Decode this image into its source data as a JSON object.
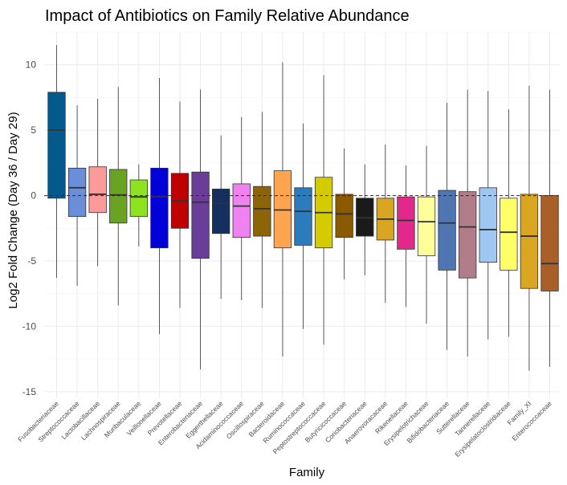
{
  "chart_data": {
    "type": "boxplot",
    "title": "Impact of Antibiotics on Family Relative Abundance",
    "xlabel": "Family",
    "ylabel": "Log2 Fold Change (Day 36 / Day 29)",
    "ylim": [
      -15.5,
      12.5
    ],
    "yticks": [
      -15,
      -10,
      -5,
      0,
      5,
      10
    ],
    "reference_line": 0,
    "grid": true,
    "legend": "none",
    "boxes": [
      {
        "family": "Fusobacteriaceae",
        "color": "#045a8d",
        "whisker_low": -6.3,
        "q1": -0.2,
        "median": 5.0,
        "q3": 7.9,
        "whisker_high": 11.5
      },
      {
        "family": "Streptococcaceae",
        "color": "#6a8fd8",
        "whisker_low": -6.9,
        "q1": -1.6,
        "median": 0.6,
        "q3": 2.1,
        "whisker_high": 6.9
      },
      {
        "family": "Lactobacillaceae",
        "color": "#fb9a99",
        "whisker_low": -5.4,
        "q1": -1.3,
        "median": 0.1,
        "q3": 2.2,
        "whisker_high": 7.4
      },
      {
        "family": "Lachnospiraceae",
        "color": "#6aa323",
        "whisker_low": -8.4,
        "q1": -2.1,
        "median": 0.05,
        "q3": 2.0,
        "whisker_high": 8.3
      },
      {
        "family": "Muribaculaceae",
        "color": "#8ee320",
        "whisker_low": -3.9,
        "q1": -1.6,
        "median": -0.1,
        "q3": 1.2,
        "whisker_high": 2.4
      },
      {
        "family": "Veillonellaceae",
        "color": "#0000d9",
        "whisker_low": -10.6,
        "q1": -4.0,
        "median": -0.1,
        "q3": 2.1,
        "whisker_high": 9.0
      },
      {
        "family": "Prevotellaceae",
        "color": "#c00000",
        "whisker_low": -8.6,
        "q1": -2.5,
        "median": -0.4,
        "q3": 1.7,
        "whisker_high": 7.2
      },
      {
        "family": "Enterobacteriaceae",
        "color": "#6a3d9a",
        "whisker_low": -13.3,
        "q1": -4.8,
        "median": -0.5,
        "q3": 1.8,
        "whisker_high": 8.1
      },
      {
        "family": "Eggerthellaceae",
        "color": "#13305e",
        "whisker_low": -7.9,
        "q1": -2.9,
        "median": -0.6,
        "q3": 0.5,
        "whisker_high": 4.6
      },
      {
        "family": "Acidaminococcaceae",
        "color": "#ee82ee",
        "whisker_low": -8.0,
        "q1": -3.2,
        "median": -0.8,
        "q3": 0.9,
        "whisker_high": 6.0
      },
      {
        "family": "Oscillospiraceae",
        "color": "#8b6508",
        "whisker_low": -8.6,
        "q1": -3.1,
        "median": -1.0,
        "q3": 0.7,
        "whisker_high": 6.4
      },
      {
        "family": "Bacteroidaceae",
        "color": "#ffa54f",
        "whisker_low": -12.3,
        "q1": -4.0,
        "median": -1.1,
        "q3": 1.9,
        "whisker_high": 10.2
      },
      {
        "family": "Ruminococcaceae",
        "color": "#2b7bbd",
        "whisker_low": -10.2,
        "q1": -3.8,
        "median": -1.2,
        "q3": 0.6,
        "whisker_high": 5.5
      },
      {
        "family": "Peptostreptococcaceae",
        "color": "#d4cc00",
        "whisker_low": -11.4,
        "q1": -4.0,
        "median": -1.3,
        "q3": 1.4,
        "whisker_high": 9.2
      },
      {
        "family": "Butyricicoccaceae",
        "color": "#8b5a00",
        "whisker_low": -6.4,
        "q1": -3.2,
        "median": -1.4,
        "q3": 0.1,
        "whisker_high": 3.6
      },
      {
        "family": "Coriobacteriaceae",
        "color": "#1a1a1a",
        "whisker_low": -6.1,
        "q1": -3.1,
        "median": -1.7,
        "q3": -0.2,
        "whisker_high": 2.4
      },
      {
        "family": "Anaerovoracaceae",
        "color": "#daa520",
        "whisker_low": -8.2,
        "q1": -3.4,
        "median": -1.8,
        "q3": -0.2,
        "whisker_high": 3.9
      },
      {
        "family": "Rikenellaceae",
        "color": "#e4288b",
        "whisker_low": -8.5,
        "q1": -4.1,
        "median": -1.9,
        "q3": -0.1,
        "whisker_high": 2.3
      },
      {
        "family": "Erysipelotrichaceae",
        "color": "#ffff99",
        "whisker_low": -9.8,
        "q1": -4.6,
        "median": -2.0,
        "q3": -0.1,
        "whisker_high": 3.8
      },
      {
        "family": "Bifidobacteriaceae",
        "color": "#4f76b0",
        "whisker_low": -11.8,
        "q1": -5.7,
        "median": -2.1,
        "q3": 0.4,
        "whisker_high": 7.1
      },
      {
        "family": "Sutterellaceae",
        "color": "#b07d88",
        "whisker_low": -12.3,
        "q1": -6.3,
        "median": -2.4,
        "q3": 0.3,
        "whisker_high": 8.1
      },
      {
        "family": "Tannerellaceae",
        "color": "#9ec7f2",
        "whisker_low": -11.0,
        "q1": -5.1,
        "median": -2.6,
        "q3": 0.6,
        "whisker_high": 8.0
      },
      {
        "family": "Erysipelatoclostridiaceae",
        "color": "#ffff66",
        "whisker_low": -10.8,
        "q1": -5.7,
        "median": -2.8,
        "q3": -0.2,
        "whisker_high": 6.6
      },
      {
        "family": "Family_XI",
        "color": "#daa520",
        "whisker_low": -13.4,
        "q1": -7.1,
        "median": -3.1,
        "q3": 0.1,
        "whisker_high": 8.4
      },
      {
        "family": "Enterococcaceae",
        "color": "#a86028",
        "whisker_low": -13.1,
        "q1": -7.3,
        "median": -5.2,
        "q3": 0.0,
        "whisker_high": 8.1
      }
    ]
  }
}
